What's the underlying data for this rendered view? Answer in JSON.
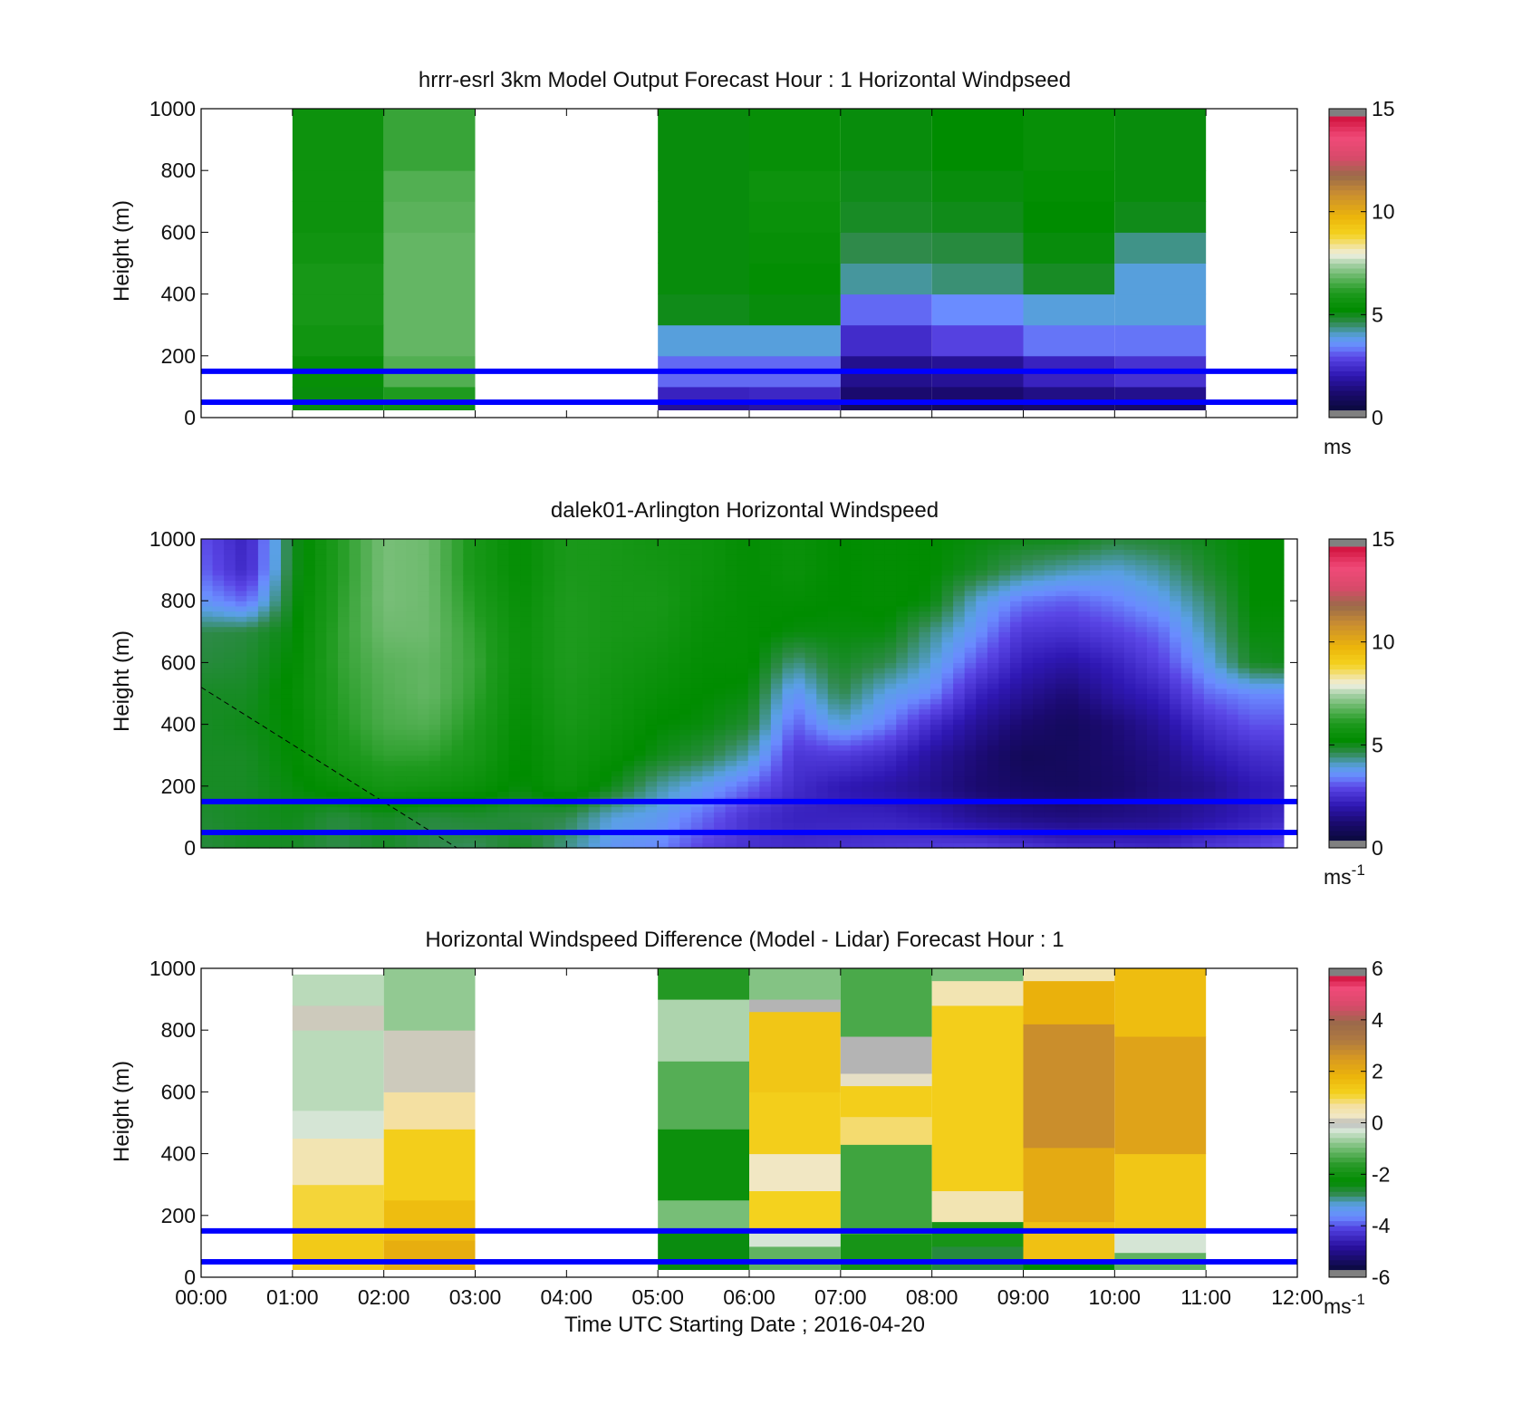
{
  "figure": {
    "xlabel": "Time UTC  Starting Date ; 2016-04-20",
    "x_ticks": [
      "00:00",
      "01:00",
      "02:00",
      "03:00",
      "04:00",
      "05:00",
      "06:00",
      "07:00",
      "08:00",
      "09:00",
      "10:00",
      "11:00",
      "12:00"
    ],
    "y_ticks": [
      "0",
      "200",
      "400",
      "600",
      "800",
      "1000"
    ],
    "ylabel": "Height (m)",
    "reference_heights_m": [
      50,
      150
    ],
    "reference_line_color": "#0000ff"
  },
  "colormaps": {
    "speed": {
      "stops": [
        [
          0.0,
          "#0a0a3c"
        ],
        [
          0.06,
          "#1a0a6e"
        ],
        [
          0.12,
          "#2f18b4"
        ],
        [
          0.18,
          "#5a46e6"
        ],
        [
          0.22,
          "#6a8cff"
        ],
        [
          0.25,
          "#5aa0e6"
        ],
        [
          0.3,
          "#2f8a4a"
        ],
        [
          0.34,
          "#008c00"
        ],
        [
          0.4,
          "#1e9a1e"
        ],
        [
          0.45,
          "#5fb45f"
        ],
        [
          0.5,
          "#aad2aa"
        ],
        [
          0.53,
          "#eef0e0"
        ],
        [
          0.55,
          "#f2e6b0"
        ],
        [
          0.6,
          "#f4d21e"
        ],
        [
          0.66,
          "#ecb40a"
        ],
        [
          0.74,
          "#c88c32"
        ],
        [
          0.8,
          "#9a6a4a"
        ],
        [
          0.86,
          "#d84a6a"
        ],
        [
          0.93,
          "#f04a78"
        ],
        [
          1.0,
          "#d0103c"
        ]
      ],
      "under_color": "#808080",
      "over_color": "#808080"
    },
    "difference": {
      "stops": [
        [
          0.0,
          "#0a0a3c"
        ],
        [
          0.08,
          "#2a10a0"
        ],
        [
          0.14,
          "#5040e0"
        ],
        [
          0.18,
          "#6a8cff"
        ],
        [
          0.22,
          "#5aa0e6"
        ],
        [
          0.26,
          "#2f8a4a"
        ],
        [
          0.3,
          "#008c00"
        ],
        [
          0.36,
          "#2a9a2a"
        ],
        [
          0.42,
          "#7cc07c"
        ],
        [
          0.48,
          "#dde8dd"
        ],
        [
          0.5,
          "#b4b4b4"
        ],
        [
          0.52,
          "#f0e8c8"
        ],
        [
          0.56,
          "#f4e0a0"
        ],
        [
          0.6,
          "#f4d21e"
        ],
        [
          0.66,
          "#ecb40a"
        ],
        [
          0.72,
          "#d89a20"
        ],
        [
          0.78,
          "#b07a40"
        ],
        [
          0.84,
          "#9a6a4a"
        ],
        [
          0.9,
          "#d84a6a"
        ],
        [
          0.96,
          "#f04a78"
        ],
        [
          1.0,
          "#d0103c"
        ]
      ],
      "under_color": "#808080",
      "over_color": "#808080"
    }
  },
  "chart_data": [
    {
      "type": "heatmap",
      "title": "hrrr-esrl 3km Model Output   Forecast Hour : 1 Horizontal Windpseed",
      "ylabel": "Height (m)",
      "xlim": [
        "00:00",
        "12:00"
      ],
      "ylim": [
        0,
        1000
      ],
      "colorbar": {
        "range": [
          0,
          15
        ],
        "ticks": [
          "0",
          "5",
          "10",
          "15"
        ],
        "unit_label": "ms",
        "unit_superscript": "",
        "colormap": "speed"
      },
      "heights": [
        [
          25,
          50
        ],
        [
          50,
          100
        ],
        [
          100,
          200
        ],
        [
          200,
          300
        ],
        [
          300,
          400
        ],
        [
          400,
          500
        ],
        [
          500,
          600
        ],
        [
          600,
          700
        ],
        [
          700,
          800
        ],
        [
          800,
          1000
        ]
      ],
      "columns": [
        {
          "start": "01:00",
          "end": "02:00",
          "values": [
            5.0,
            5.0,
            5.3,
            5.6,
            5.8,
            5.8,
            5.6,
            5.5,
            5.5,
            5.5
          ]
        },
        {
          "start": "02:00",
          "end": "03:00",
          "values": [
            5.6,
            6.0,
            6.6,
            6.8,
            6.8,
            6.8,
            6.8,
            6.7,
            6.6,
            6.3
          ]
        },
        {
          "start": "05:00",
          "end": "06:00",
          "values": [
            1.4,
            2.0,
            3.0,
            3.8,
            4.9,
            5.0,
            5.0,
            5.0,
            5.0,
            5.0
          ]
        },
        {
          "start": "06:00",
          "end": "07:00",
          "values": [
            1.6,
            2.1,
            3.0,
            3.8,
            5.0,
            5.2,
            5.3,
            5.4,
            5.5,
            5.3
          ]
        },
        {
          "start": "07:00",
          "end": "08:00",
          "values": [
            0.6,
            0.9,
            1.3,
            2.2,
            3.0,
            4.1,
            4.5,
            4.8,
            4.9,
            5.0
          ]
        },
        {
          "start": "08:00",
          "end": "09:00",
          "values": [
            0.6,
            0.9,
            1.4,
            2.6,
            3.3,
            4.3,
            4.6,
            4.9,
            5.0,
            5.1
          ]
        },
        {
          "start": "09:00",
          "end": "10:00",
          "values": [
            0.8,
            1.2,
            2.0,
            3.1,
            3.8,
            4.8,
            5.0,
            5.1,
            5.2,
            5.3
          ]
        },
        {
          "start": "10:00",
          "end": "11:00",
          "values": [
            0.8,
            1.3,
            2.3,
            3.1,
            3.8,
            3.8,
            4.2,
            4.9,
            5.0,
            5.0
          ]
        }
      ]
    },
    {
      "type": "heatmap",
      "title": "dalek01-Arlington  Horizontal Windspeed",
      "ylabel": "Height (m)",
      "xlim": [
        "00:00",
        "12:00"
      ],
      "ylim": [
        0,
        1000
      ],
      "colorbar": {
        "range": [
          0,
          15
        ],
        "ticks": [
          "0",
          "5",
          "10",
          "15"
        ],
        "unit_label": "ms",
        "unit_superscript": "-1",
        "colormap": "speed"
      },
      "data_extent_hours": [
        0.0,
        11.85
      ],
      "profile_heights_m": [
        0,
        100,
        200,
        300,
        400,
        500,
        600,
        700,
        800,
        900,
        1000
      ],
      "profile_times_h": [
        0.0,
        0.5,
        1.0,
        1.5,
        2.0,
        2.5,
        3.0,
        3.5,
        4.0,
        4.5,
        5.0,
        5.5,
        6.0,
        6.5,
        7.0,
        7.5,
        8.0,
        8.5,
        9.0,
        9.5,
        10.0,
        10.5,
        11.0,
        11.5,
        11.85
      ],
      "profiles": [
        [
          4.6,
          4.7,
          4.8,
          4.8,
          4.8,
          4.8,
          4.6,
          4.5,
          3.5,
          3.0,
          2.8
        ],
        [
          4.8,
          4.8,
          4.8,
          4.8,
          4.9,
          4.8,
          4.7,
          4.6,
          3.0,
          2.1,
          2.0
        ],
        [
          4.8,
          4.9,
          5.0,
          5.1,
          5.1,
          5.2,
          5.1,
          5.0,
          4.9,
          4.8,
          4.8
        ],
        [
          4.5,
          4.6,
          5.3,
          5.8,
          6.0,
          6.1,
          6.2,
          6.2,
          6.1,
          6.0,
          6.0
        ],
        [
          4.8,
          4.8,
          5.7,
          6.2,
          6.5,
          6.6,
          6.7,
          6.9,
          7.0,
          7.0,
          7.0
        ],
        [
          4.5,
          4.6,
          5.6,
          6.2,
          6.6,
          6.8,
          6.8,
          6.9,
          6.9,
          6.9,
          6.9
        ],
        [
          4.4,
          4.7,
          5.4,
          5.8,
          6.0,
          6.2,
          6.3,
          6.2,
          6.0,
          5.8,
          5.8
        ],
        [
          4.8,
          4.6,
          5.0,
          5.1,
          5.2,
          5.3,
          5.4,
          5.4,
          5.3,
          5.2,
          5.2
        ],
        [
          4.2,
          4.5,
          5.5,
          5.6,
          5.8,
          5.9,
          6.0,
          6.0,
          6.0,
          5.9,
          5.9
        ],
        [
          3.5,
          3.8,
          4.9,
          5.3,
          5.5,
          5.6,
          5.7,
          5.8,
          5.8,
          5.8,
          5.8
        ],
        [
          3.3,
          3.6,
          4.1,
          4.9,
          5.1,
          5.3,
          5.5,
          5.7,
          5.8,
          5.7,
          5.6
        ],
        [
          2.6,
          3.0,
          3.6,
          4.6,
          5.0,
          5.1,
          5.2,
          5.3,
          5.4,
          5.5,
          5.5
        ],
        [
          2.3,
          2.3,
          3.0,
          4.0,
          4.7,
          5.0,
          5.2,
          5.2,
          5.2,
          5.2,
          5.2
        ],
        [
          2.2,
          2.0,
          2.2,
          2.4,
          2.9,
          3.4,
          4.2,
          5.0,
          5.2,
          5.4,
          5.4
        ],
        [
          2.3,
          2.0,
          1.8,
          2.5,
          3.8,
          4.5,
          4.8,
          5.0,
          5.1,
          5.1,
          5.1
        ],
        [
          2.4,
          2.0,
          1.6,
          2.2,
          3.2,
          3.7,
          4.5,
          5.0,
          5.2,
          5.2,
          5.2
        ],
        [
          2.5,
          1.8,
          1.3,
          1.5,
          2.2,
          3.3,
          3.8,
          4.2,
          5.0,
          5.1,
          5.1
        ],
        [
          2.6,
          1.4,
          0.9,
          1.0,
          1.4,
          2.0,
          2.8,
          3.4,
          3.8,
          4.8,
          5.0
        ],
        [
          2.4,
          1.2,
          0.7,
          0.5,
          0.9,
          1.4,
          1.9,
          2.4,
          3.1,
          4.3,
          4.9
        ],
        [
          2.2,
          1.1,
          0.6,
          0.6,
          0.6,
          1.0,
          1.6,
          2.3,
          2.9,
          4.0,
          4.9
        ],
        [
          2.2,
          1.2,
          0.8,
          0.9,
          1.0,
          1.6,
          2.0,
          2.6,
          3.2,
          3.8,
          4.6
        ],
        [
          2.1,
          1.3,
          1.1,
          1.2,
          1.5,
          2.0,
          2.6,
          3.0,
          3.6,
          4.1,
          4.7
        ],
        [
          2.4,
          1.6,
          1.3,
          1.8,
          2.3,
          3.0,
          3.6,
          4.0,
          4.3,
          4.7,
          4.9
        ],
        [
          2.6,
          1.9,
          1.8,
          2.2,
          2.8,
          3.3,
          4.8,
          5.0,
          5.1,
          5.1,
          5.1
        ],
        [
          2.8,
          2.1,
          1.9,
          2.3,
          2.8,
          3.3,
          4.9,
          5.0,
          5.1,
          5.1,
          5.1
        ]
      ]
    },
    {
      "type": "heatmap",
      "title": "Horizontal Windspeed Difference (Model - Lidar) Forecast Hour : 1",
      "ylabel": "Height (m)",
      "xlabel": "Time UTC  Starting Date ; 2016-04-20",
      "xlim": [
        "00:00",
        "12:00"
      ],
      "ylim": [
        0,
        1000
      ],
      "colorbar": {
        "range": [
          -6,
          6
        ],
        "ticks": [
          "-6",
          "-4",
          "-2",
          "0",
          "2",
          "4",
          "6"
        ],
        "unit_label": "ms",
        "unit_superscript": "-1",
        "colormap": "difference"
      },
      "columns": [
        {
          "start": "01:00",
          "end": "02:00",
          "segments": [
            [
              25,
              160,
              1.4
            ],
            [
              160,
              300,
              1.1
            ],
            [
              300,
              450,
              0.5
            ],
            [
              450,
              540,
              -0.3
            ],
            [
              540,
              800,
              -0.5
            ],
            [
              800,
              880,
              0.1
            ],
            [
              880,
              980,
              -0.5
            ]
          ]
        },
        {
          "start": "02:00",
          "end": "03:00",
          "segments": [
            [
              25,
              120,
              2.1
            ],
            [
              120,
              250,
              1.7
            ],
            [
              250,
              480,
              1.3
            ],
            [
              480,
              600,
              0.7
            ],
            [
              600,
              800,
              0.1
            ],
            [
              800,
              1000,
              -0.8
            ]
          ]
        },
        {
          "start": "05:00",
          "end": "06:00",
          "segments": [
            [
              25,
              150,
              -2.5
            ],
            [
              150,
              250,
              -1.0
            ],
            [
              250,
              480,
              -2.2
            ],
            [
              480,
              700,
              -1.3
            ],
            [
              700,
              900,
              -0.6
            ],
            [
              900,
              1000,
              -1.8
            ]
          ]
        },
        {
          "start": "06:00",
          "end": "07:00",
          "segments": [
            [
              25,
              100,
              -1.2
            ],
            [
              100,
              160,
              -0.3
            ],
            [
              160,
              280,
              1.2
            ],
            [
              280,
              400,
              0.3
            ],
            [
              400,
              600,
              1.3
            ],
            [
              600,
              860,
              1.5
            ],
            [
              860,
              900,
              0.0
            ],
            [
              900,
              1000,
              -0.9
            ]
          ]
        },
        {
          "start": "07:00",
          "end": "08:00",
          "segments": [
            [
              25,
              140,
              -2.0
            ],
            [
              140,
              430,
              -1.5
            ],
            [
              430,
              520,
              0.9
            ],
            [
              520,
              620,
              1.3
            ],
            [
              620,
              660,
              0.2
            ],
            [
              660,
              780,
              0.0
            ],
            [
              780,
              1000,
              -1.4
            ]
          ]
        },
        {
          "start": "08:00",
          "end": "09:00",
          "segments": [
            [
              25,
              100,
              -2.8
            ],
            [
              100,
              180,
              -2.0
            ],
            [
              180,
              280,
              0.5
            ],
            [
              280,
              880,
              1.3
            ],
            [
              880,
              960,
              0.5
            ],
            [
              960,
              1000,
              -1.0
            ]
          ]
        },
        {
          "start": "09:00",
          "end": "10:00",
          "segments": [
            [
              25,
              60,
              -2.4
            ],
            [
              60,
              180,
              1.6
            ],
            [
              180,
              420,
              2.2
            ],
            [
              420,
              820,
              2.9
            ],
            [
              820,
              960,
              2.0
            ],
            [
              960,
              1000,
              0.5
            ]
          ]
        },
        {
          "start": "10:00",
          "end": "11:00",
          "segments": [
            [
              25,
              80,
              -1.2
            ],
            [
              80,
              160,
              -0.3
            ],
            [
              160,
              400,
              1.5
            ],
            [
              400,
              780,
              2.4
            ],
            [
              780,
              1000,
              1.7
            ]
          ]
        }
      ]
    }
  ]
}
